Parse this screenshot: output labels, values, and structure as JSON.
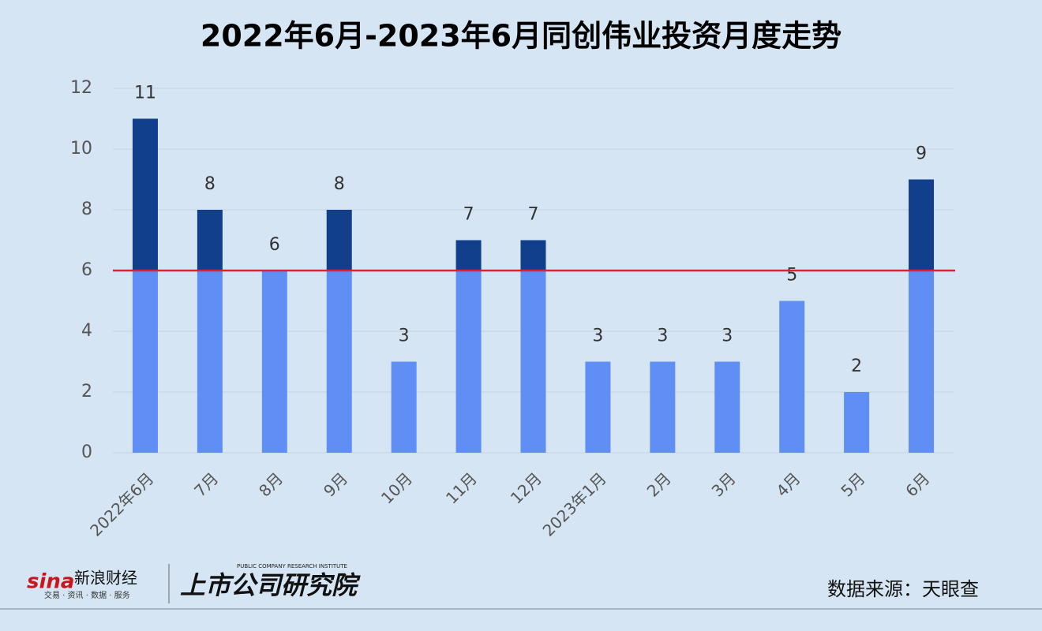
{
  "chart_data": {
    "type": "bar",
    "title": "2022年6月-2023年6月同创伟业投资月度走势",
    "categories": [
      "2022年6月",
      "7月",
      "8月",
      "9月",
      "10月",
      "11月",
      "12月",
      "2023年1月",
      "2月",
      "3月",
      "4月",
      "5月",
      "6月"
    ],
    "values": [
      11,
      8,
      6,
      8,
      3,
      7,
      7,
      3,
      3,
      3,
      5,
      2,
      9
    ],
    "color": "#5f8ff5",
    "above_color": "#123f8c",
    "threshold": 6,
    "threshold_color": "#e0202b",
    "ylim": [
      0,
      12
    ],
    "yticks": [
      0,
      2,
      4,
      6,
      8,
      10,
      12
    ],
    "grid": true,
    "source": "数据来源：天眼查"
  },
  "branding": {
    "sina": "sina",
    "sina_name": "新浪财经",
    "sina_slogan": "交易 · 资讯 · 数据 · 服务",
    "institute": "上市公司研究院",
    "institute_en": "PUBLIC COMPANY RESEARCH INSTITUTE"
  }
}
